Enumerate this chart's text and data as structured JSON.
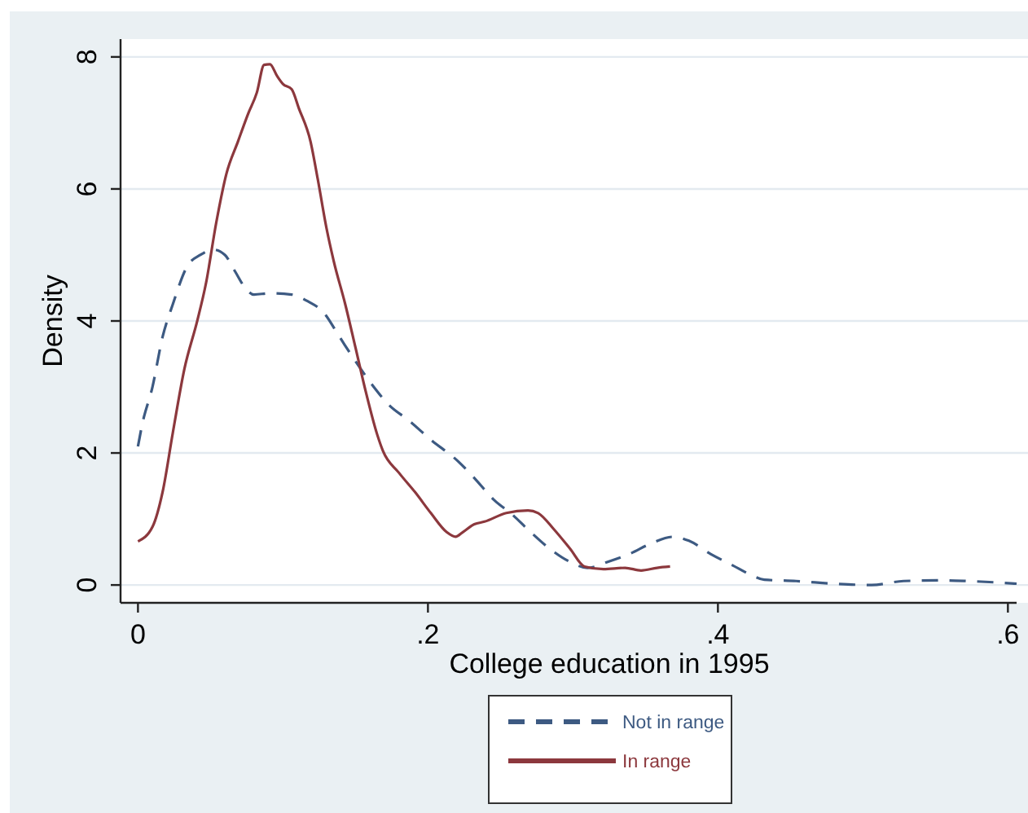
{
  "chart_data": {
    "type": "line",
    "xlabel": "College education in 1995",
    "ylabel": "Density",
    "series": [
      {
        "name": "Not in range",
        "color": "#3d5a82",
        "line_style": "dashed",
        "x": [
          0,
          0.003,
          0.01,
          0.017,
          0.024,
          0.034,
          0.043,
          0.052,
          0.06,
          0.067,
          0.074,
          0.08,
          0.091,
          0.106,
          0.117,
          0.128,
          0.139,
          0.15,
          0.162,
          0.173,
          0.187,
          0.202,
          0.221,
          0.232,
          0.246,
          0.258,
          0.269,
          0.284,
          0.298,
          0.31,
          0.324,
          0.339,
          0.354,
          0.369,
          0.38,
          0.395,
          0.41,
          0.424,
          0.432,
          0.454,
          0.48,
          0.506,
          0.528,
          0.554,
          0.572,
          0.606
        ],
        "values": [
          2.1,
          2.44,
          3.0,
          3.76,
          4.25,
          4.83,
          5.0,
          5.08,
          5.0,
          4.75,
          4.5,
          4.4,
          4.42,
          4.4,
          4.3,
          4.13,
          3.76,
          3.39,
          3.02,
          2.73,
          2.49,
          2.2,
          1.87,
          1.62,
          1.28,
          1.07,
          0.84,
          0.55,
          0.35,
          0.26,
          0.35,
          0.47,
          0.63,
          0.73,
          0.67,
          0.47,
          0.3,
          0.14,
          0.08,
          0.06,
          0.02,
          0.0,
          0.06,
          0.07,
          0.06,
          0.02
        ]
      },
      {
        "name": "In range",
        "color": "#8c383d",
        "line_style": "solid",
        "x": [
          0,
          0.01,
          0.017,
          0.024,
          0.032,
          0.041,
          0.047,
          0.054,
          0.061,
          0.069,
          0.076,
          0.082,
          0.087,
          0.091,
          0.096,
          0.1,
          0.106,
          0.111,
          0.119,
          0.124,
          0.13,
          0.135,
          0.143,
          0.15,
          0.157,
          0.165,
          0.169,
          0.18,
          0.191,
          0.202,
          0.213,
          0.219,
          0.224,
          0.232,
          0.239,
          0.254,
          0.269,
          0.276,
          0.287,
          0.298,
          0.308,
          0.321,
          0.336,
          0.347,
          0.358,
          0.367
        ],
        "values": [
          0.66,
          0.88,
          1.41,
          2.3,
          3.27,
          4.01,
          4.58,
          5.49,
          6.23,
          6.72,
          7.14,
          7.46,
          7.88,
          7.89,
          7.71,
          7.59,
          7.51,
          7.22,
          6.72,
          6.15,
          5.41,
          4.91,
          4.25,
          3.6,
          2.94,
          2.28,
          2.03,
          1.7,
          1.41,
          1.09,
          0.8,
          0.73,
          0.8,
          0.92,
          0.96,
          1.09,
          1.13,
          1.09,
          0.84,
          0.55,
          0.28,
          0.24,
          0.26,
          0.22,
          0.26,
          0.28
        ]
      }
    ],
    "xlim": [
      -0.012,
      0.606
    ],
    "xticks": [
      0,
      {
        "value": 0.2,
        "label": ".2"
      },
      {
        "value": 0.4,
        "label": ".4"
      },
      {
        "value": 0.6,
        "label": ".6"
      }
    ],
    "ylim": [
      -0.27,
      8.27
    ],
    "yticks": [
      0,
      2,
      4,
      6,
      8
    ],
    "grid": "y",
    "legend": "bottom"
  }
}
